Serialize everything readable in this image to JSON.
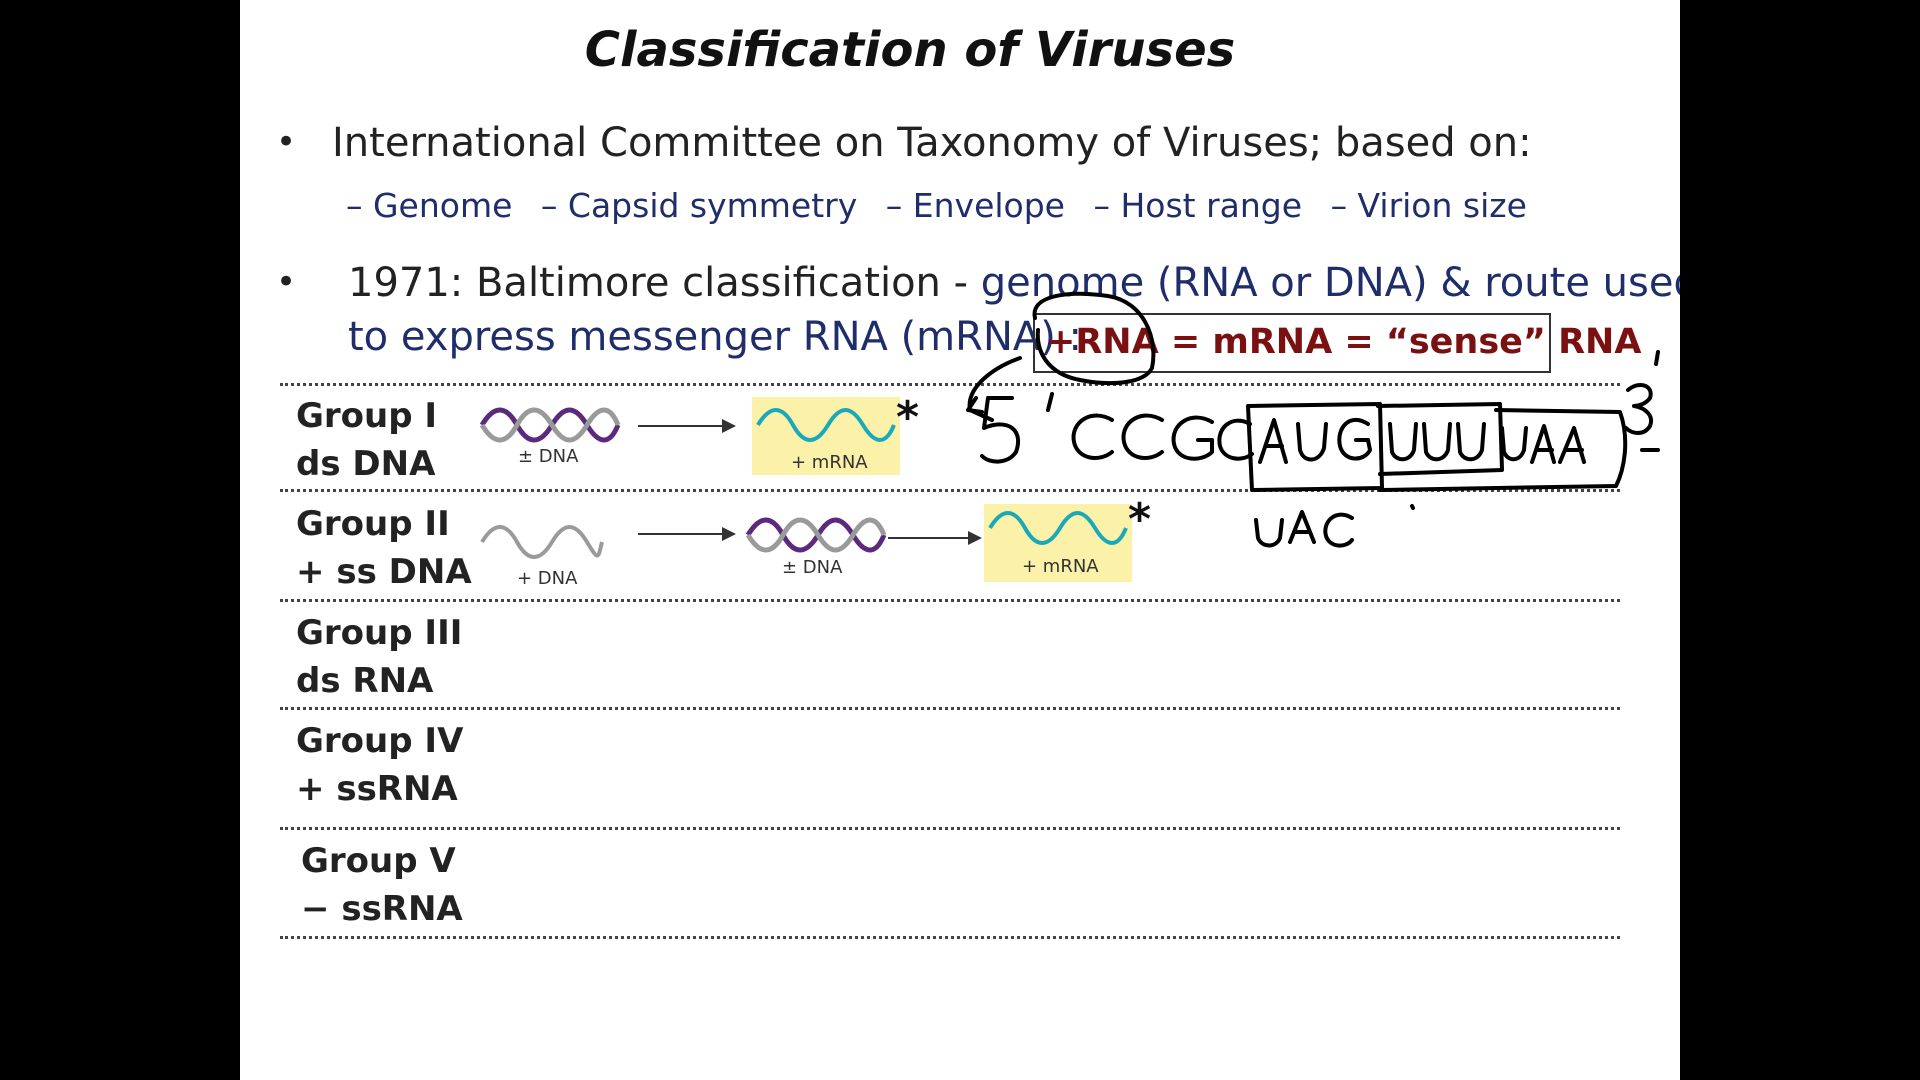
{
  "slide": {
    "title": "Classification of Viruses",
    "bullet1": {
      "text": "International Committee on Taxonomy of Viruses; based on:",
      "criteria": [
        "– Genome",
        "– Capsid symmetry",
        "– Envelope",
        "– Host range",
        "– Virion size"
      ]
    },
    "bullet2": {
      "lead": "1971: Baltimore classification - ",
      "highlight": "genome (RNA or DNA) & route used",
      "line2": "to express messenger RNA (mRNA) :"
    },
    "sense_box": "+RNA = mRNA = “sense” RNA",
    "groups": [
      {
        "name": "Group I",
        "type": "ds DNA"
      },
      {
        "name": "Group II",
        "type": "+ ss DNA"
      },
      {
        "name": "Group III",
        "type": "ds RNA"
      },
      {
        "name": "Group IV",
        "type": "+ ssRNA"
      },
      {
        "name": "Group V",
        "type": "− ssRNA"
      }
    ],
    "diagram": {
      "g1_dna_label": "± DNA",
      "g1_mrna_label": "+ mRNA",
      "g2_ssdna_label": "+ DNA",
      "g2_dsdna_label": "± DNA",
      "g2_mrna_label": "+ mRNA",
      "star": "*"
    }
  },
  "colors": {
    "background": "#000000",
    "slide": "#ffffff",
    "sub_text": "#1f2d6b",
    "sense_text": "#7a1010",
    "mrna_highlight": "#fbf1a9",
    "mrna_wave": "#1aa9b8",
    "dna_purple": "#5b2a7e",
    "dna_grey": "#9a9a9a"
  }
}
